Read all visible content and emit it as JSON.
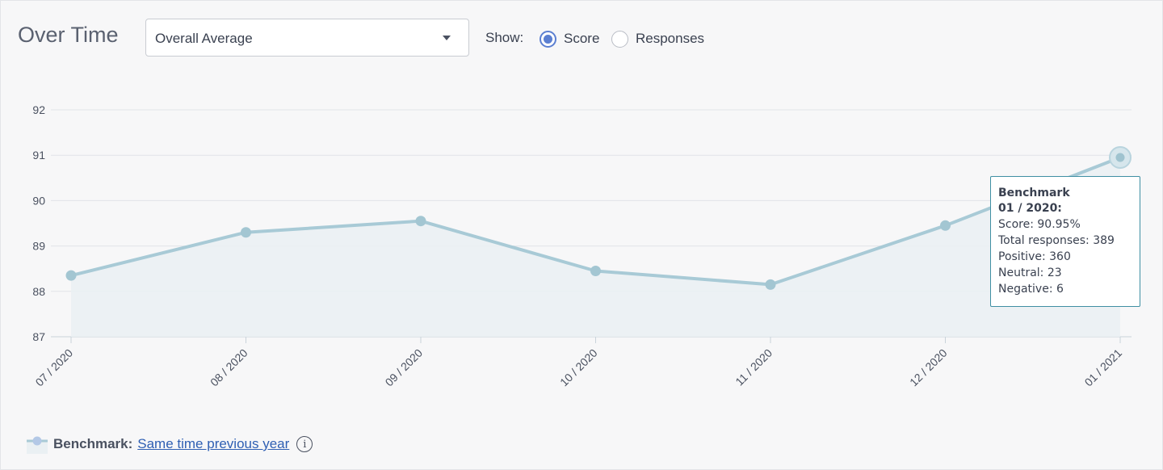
{
  "header": {
    "title": "Over Time",
    "dropdown": {
      "selected": "Overall Average"
    },
    "show_label": "Show:",
    "radios": [
      {
        "label": "Score",
        "checked": true
      },
      {
        "label": "Responses",
        "checked": false
      }
    ]
  },
  "tooltip": {
    "title_line1": "Benchmark",
    "title_line2": "01 / 2020:",
    "score": "Score: 90.95%",
    "total": "Total responses: 389",
    "positive": "Positive: 360",
    "neutral": "Neutral: 23",
    "negative": "Negative: 6"
  },
  "legend": {
    "series": "Benchmark:",
    "link": "Same time previous year",
    "info_icon": "info-icon"
  },
  "colors": {
    "line": "#a8cad6",
    "area": "#eaf0f3",
    "accent": "#5b7fd1",
    "tooltip_border": "#3f8fa3"
  },
  "chart_data": {
    "type": "area",
    "categories": [
      "07 / 2020",
      "08 / 2020",
      "09 / 2020",
      "10 / 2020",
      "11 / 2020",
      "12 / 2020",
      "01 / 2021"
    ],
    "series": [
      {
        "name": "Benchmark",
        "values": [
          88.35,
          89.3,
          89.55,
          88.45,
          88.15,
          89.45,
          90.95
        ]
      }
    ],
    "ylim": [
      87,
      92
    ],
    "yticks": [
      92,
      91,
      90,
      89,
      88,
      87
    ],
    "highlighted_index": 6,
    "grid": true
  }
}
